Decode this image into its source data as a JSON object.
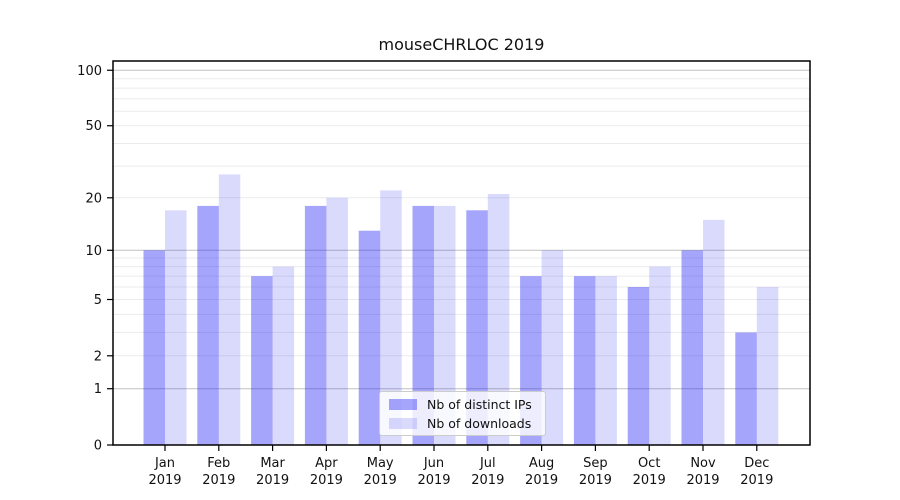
{
  "chart_data": {
    "type": "bar",
    "title": "mouseCHRLOC 2019",
    "categories": [
      "Jan",
      "Feb",
      "Mar",
      "Apr",
      "May",
      "Jun",
      "Jul",
      "Aug",
      "Sep",
      "Oct",
      "Nov",
      "Dec"
    ],
    "year_label": "2019",
    "series": [
      {
        "name": "Nb of distinct IPs",
        "values": [
          10,
          18,
          7,
          18,
          13,
          18,
          17,
          7,
          7,
          6,
          10,
          3
        ],
        "color": "rgba(30,30,245,0.40)"
      },
      {
        "name": "Nb of downloads",
        "values": [
          17,
          27,
          8,
          20,
          22,
          18,
          21,
          10,
          7,
          8,
          15,
          6
        ],
        "color": "rgba(30,30,245,0.165)"
      }
    ],
    "yscale": "log1p",
    "ytick_values": [
      0,
      1,
      2,
      5,
      10,
      20,
      50,
      100
    ],
    "ytick_labels": [
      "0",
      "1",
      "2",
      "5",
      "10",
      "20",
      "50",
      "100"
    ],
    "minor_grid_values": [
      3,
      4,
      6,
      7,
      8,
      9,
      30,
      40,
      60,
      70,
      80,
      90
    ],
    "ylim": [
      0,
      112
    ],
    "grid": true,
    "legend_position": "lower center",
    "colors": {
      "bar_distinct_ips": "rgba(30,30,245,0.40)",
      "bar_downloads": "rgba(30,30,245,0.165)",
      "major_gridline": "#c1c1c1",
      "minor_gridline": "#ebebeb",
      "axis_frame": "#000000"
    }
  }
}
